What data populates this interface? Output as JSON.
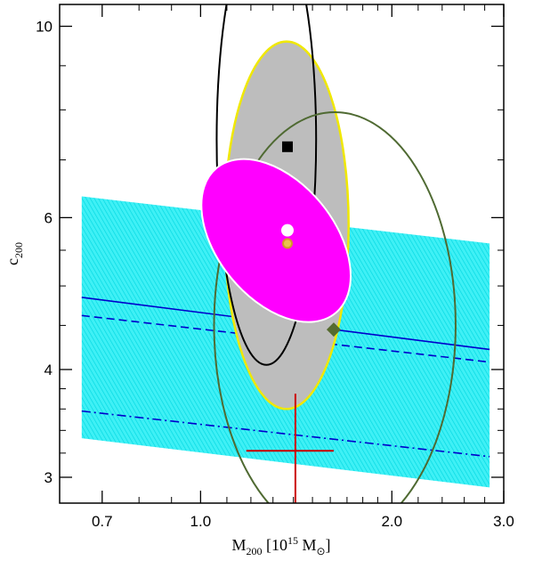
{
  "chart_data": {
    "type": "scatter",
    "xscale": "log",
    "yscale": "log",
    "xlim": [
      0.6,
      3.0
    ],
    "ylim": [
      2.8,
      10.6
    ],
    "xlabel": {
      "main": "M",
      "sub": "200",
      "rest": " [10",
      "sup": "15",
      "rest2": " M",
      "sym": "⊙",
      "end": "]"
    },
    "ylabel": {
      "main": "c",
      "sub": "200"
    },
    "xticks": [
      {
        "value": 0.7,
        "label": "0.7"
      },
      {
        "value": 1.0,
        "label": "1.0"
      },
      {
        "value": 2.0,
        "label": "2.0"
      },
      {
        "value": 3.0,
        "label": "3.0"
      }
    ],
    "yticks": [
      {
        "value": 3,
        "label": "3"
      },
      {
        "value": 4,
        "label": "4"
      },
      {
        "value": 6,
        "label": "6"
      },
      {
        "value": 10,
        "label": "10"
      }
    ],
    "band": {
      "color": "#00e5ee",
      "x": [
        0.65,
        2.85
      ],
      "upper_y": [
        6.35,
        5.6
      ],
      "lower_y": [
        3.33,
        2.92
      ]
    },
    "lines": [
      {
        "style": "solid",
        "color": "#0000cc",
        "x": [
          0.65,
          2.85
        ],
        "y": [
          4.85,
          4.22
        ]
      },
      {
        "style": "dashed",
        "color": "#0000cc",
        "x": [
          0.65,
          2.85
        ],
        "y": [
          4.62,
          4.08
        ]
      },
      {
        "style": "dashdot",
        "color": "#0000cc",
        "x": [
          0.65,
          2.85
        ],
        "y": [
          3.58,
          3.17
        ]
      }
    ],
    "ellipses": [
      {
        "kind": "filled",
        "fill": "#bdbdbd",
        "stroke": "#f0e800",
        "center": [
          1.37,
          5.9
        ],
        "x_range": [
          1.09,
          1.71
        ],
        "y_range": [
          3.6,
          9.6
        ]
      },
      {
        "kind": "outline",
        "stroke": "#000000",
        "center": [
          1.3,
          8.6
        ],
        "x_range": [
          1.06,
          1.52
        ],
        "y_range": [
          4.05,
          13.5
        ]
      },
      {
        "kind": "outline",
        "stroke": "#4f6a32",
        "center": [
          1.7,
          5.3
        ],
        "x_range": [
          1.05,
          2.52
        ],
        "y_range": [
          2.55,
          7.95
        ]
      },
      {
        "kind": "filled-tilted",
        "fill": "#ff00ff",
        "stroke": "#ffffff",
        "points": [
          [
            1.06,
            6.85
          ],
          [
            1.63,
            4.65
          ],
          [
            1.22,
            6.65
          ],
          [
            1.4,
            4.95
          ]
        ]
      }
    ],
    "markers": [
      {
        "shape": "square",
        "color": "#000000",
        "x": 1.37,
        "y": 7.25
      },
      {
        "shape": "circle",
        "color": "#ffffff",
        "x": 1.37,
        "y": 5.8
      },
      {
        "shape": "circle",
        "color": "#e9c24e",
        "stroke": "#d39a27",
        "x": 1.37,
        "y": 5.6
      },
      {
        "shape": "diamond",
        "color": "#556b2f",
        "x": 1.62,
        "y": 4.45
      }
    ],
    "errorbar": {
      "color": "#cc0000",
      "x": 1.41,
      "y": 3.22,
      "x_range": [
        1.18,
        1.62
      ],
      "y_range": [
        2.8,
        3.75
      ]
    }
  }
}
